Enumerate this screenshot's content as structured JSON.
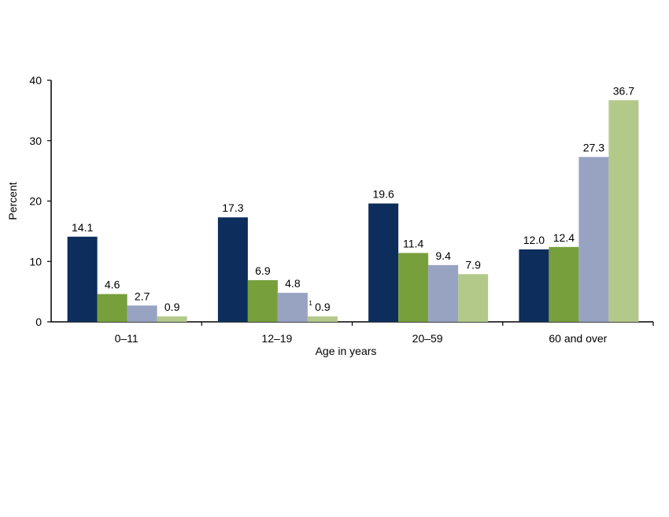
{
  "chart_data": {
    "type": "bar",
    "xlabel": "Age in years",
    "ylabel": "Percent",
    "ylim": [
      0,
      40
    ],
    "yticks": [
      "0",
      "10",
      "20",
      "30",
      "40"
    ],
    "categories": [
      "0–11",
      "12–19",
      "20–59",
      "60 and over"
    ],
    "series": [
      {
        "color": "#0d2e5c",
        "values": [
          14.1,
          17.3,
          19.6,
          12.0
        ],
        "labels": [
          "14.1",
          "17.3",
          "19.6",
          "12.0"
        ]
      },
      {
        "color": "#77a03c",
        "values": [
          4.6,
          6.9,
          11.4,
          12.4
        ],
        "labels": [
          "4.6",
          "6.9",
          "11.4",
          "12.4"
        ]
      },
      {
        "color": "#98a3c2",
        "values": [
          2.7,
          4.8,
          9.4,
          27.3
        ],
        "labels": [
          "2.7",
          "4.8",
          "9.4",
          "27.3"
        ]
      },
      {
        "color": "#b3c98a",
        "values": [
          0.9,
          0.9,
          7.9,
          36.7
        ],
        "labels": [
          "0.9",
          "0.9",
          "7.9",
          "36.7"
        ]
      }
    ],
    "footnotes": [
      {
        "category_index": 1,
        "series_index": 3,
        "mark": "1"
      }
    ],
    "grid": false,
    "legend": "none"
  }
}
